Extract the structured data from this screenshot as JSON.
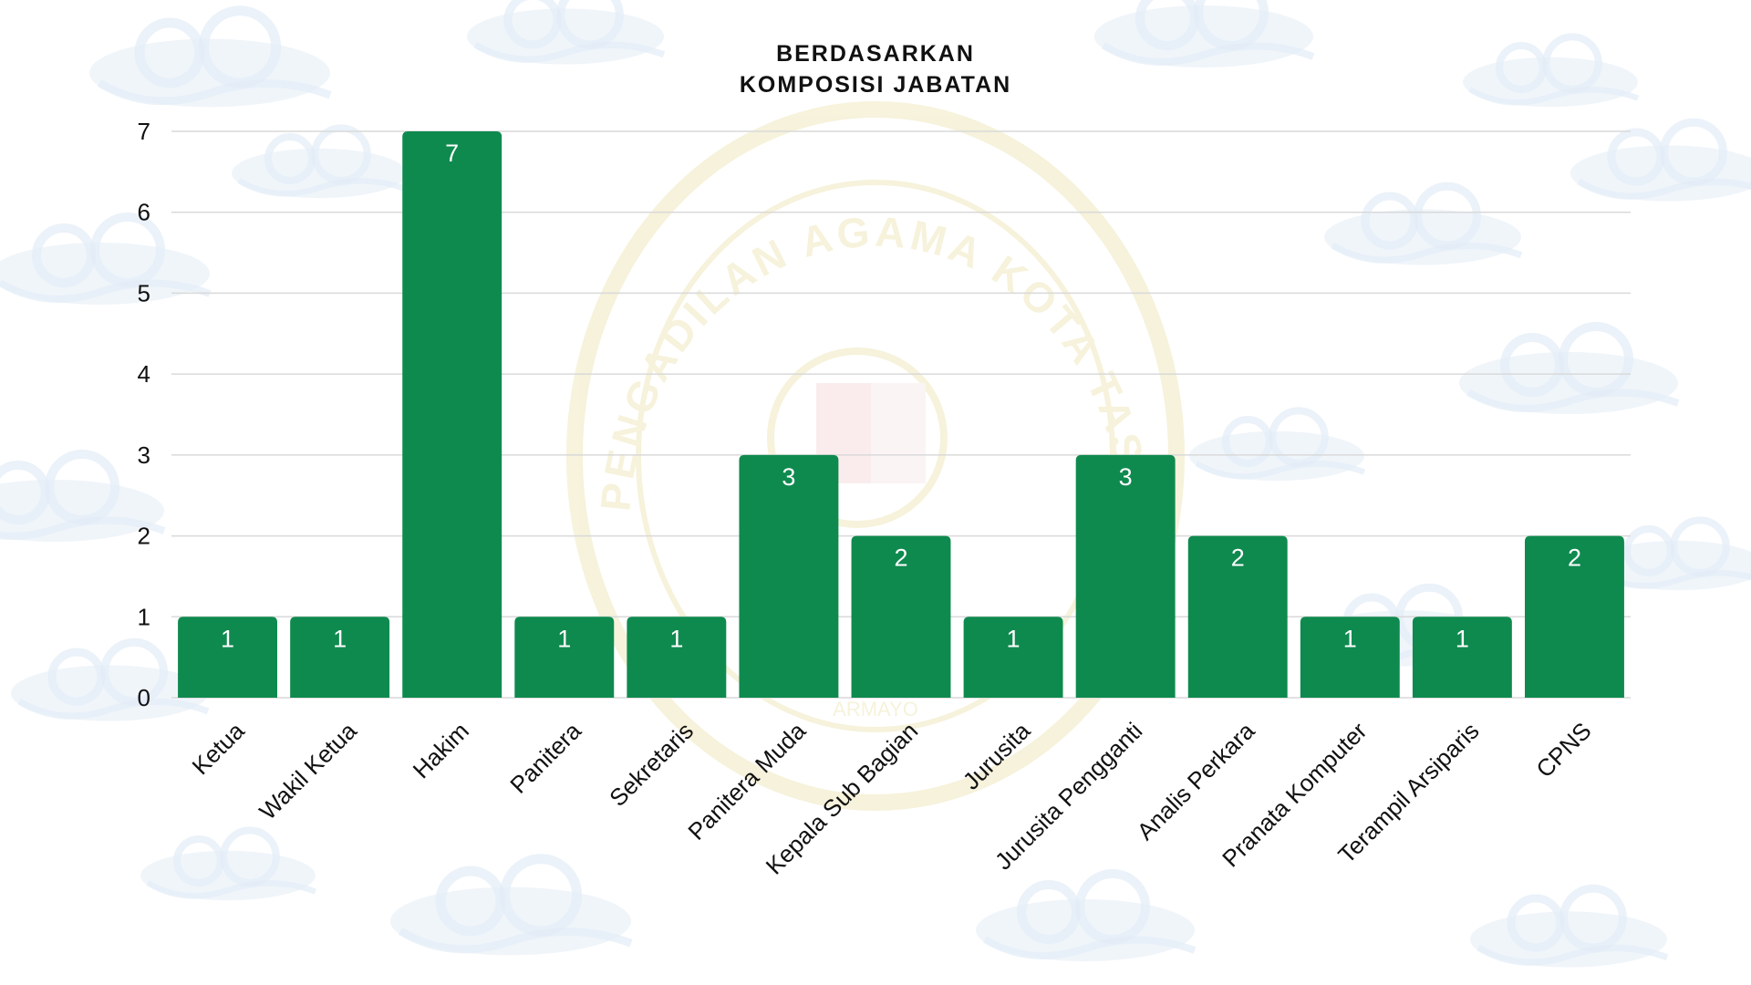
{
  "chart_data": {
    "type": "bar",
    "title_lines": [
      "BERDASARKAN",
      "KOMPOSISI JABATAN"
    ],
    "categories": [
      "Ketua",
      "Wakil Ketua",
      "Hakim",
      "Panitera",
      "Sekretaris",
      "Panitera Muda",
      "Kepala Sub Bagian",
      "Jurusita",
      "Jurusita Pengganti",
      "Analis Perkara",
      "Pranata Komputer",
      "Terampil Arsiparis",
      "CPNS"
    ],
    "values": [
      1,
      1,
      7,
      1,
      1,
      3,
      2,
      1,
      3,
      2,
      1,
      1,
      2
    ],
    "ylim": [
      0,
      7
    ],
    "yticks": [
      "0",
      "1",
      "2",
      "3",
      "4",
      "5",
      "6",
      "7"
    ],
    "grid": true,
    "data_labels": true,
    "bar_color": "#0f8a4f",
    "grid_color": "#d9d9d9"
  },
  "watermark": {
    "seal_text": "PENGADILAN AGAMA KOTA TASIKMA",
    "seal_bottom_text": "ARMAYO",
    "seal_color": "#e8dc9a",
    "cloud_color": "#e3edf6"
  }
}
